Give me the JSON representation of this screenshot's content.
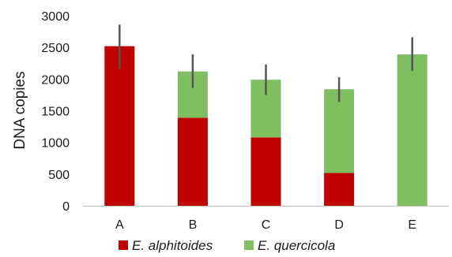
{
  "chart_data": {
    "type": "bar",
    "stacked": true,
    "categories": [
      "A",
      "B",
      "C",
      "D",
      "E"
    ],
    "series": [
      {
        "name": "E. alphitoides",
        "color": "#c00000",
        "values": [
          2520,
          1390,
          1080,
          520,
          0
        ]
      },
      {
        "name": "E. quercicola",
        "color": "#80bf5f",
        "values": [
          0,
          730,
          910,
          1320,
          2390
        ]
      }
    ],
    "error_bars": {
      "color": "#555555",
      "totals": [
        2520,
        2120,
        1990,
        1840,
        2390
      ],
      "lower": [
        2160,
        1860,
        1750,
        1640,
        2130
      ],
      "upper": [
        2860,
        2390,
        2230,
        2030,
        2660
      ]
    },
    "xlabel": "",
    "ylabel": "DNA copies",
    "ylim": [
      0,
      3000
    ],
    "yticks": [
      "0",
      "500",
      "1000",
      "1500",
      "2000",
      "2500",
      "3000"
    ],
    "grid": false,
    "legend_position": "bottom"
  }
}
